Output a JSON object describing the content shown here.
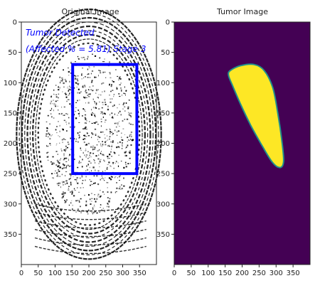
{
  "chart_data": [
    {
      "type": "image",
      "title": "Original Image",
      "xlim": [
        0,
        400
      ],
      "ylim": [
        400,
        0
      ],
      "xticks": [
        0,
        50,
        100,
        150,
        200,
        250,
        300,
        350
      ],
      "yticks": [
        0,
        50,
        100,
        150,
        200,
        250,
        300,
        350
      ],
      "annotation_lines": [
        "Tumor Detected",
        "(Affected % = 5.81) Stage 3"
      ],
      "annotation_color": "#0000ff",
      "bounding_box": {
        "x1": 152,
        "y1": 70,
        "x2": 342,
        "y2": 250
      },
      "box_color": "#0000ff"
    },
    {
      "type": "heatmap",
      "title": "Tumor Image",
      "xlim": [
        0,
        400
      ],
      "ylim": [
        400,
        0
      ],
      "xticks": [
        0,
        50,
        100,
        150,
        200,
        250,
        300,
        350
      ],
      "yticks": [
        0,
        50,
        100,
        150,
        200,
        250,
        300,
        350
      ],
      "background_color": "#440154",
      "region_color": "#fde725",
      "edge_color": "#21918c",
      "region_outline": [
        [
          165,
          80
        ],
        [
          195,
          72
        ],
        [
          235,
          70
        ],
        [
          265,
          80
        ],
        [
          290,
          108
        ],
        [
          305,
          150
        ],
        [
          318,
          200
        ],
        [
          322,
          230
        ],
        [
          312,
          240
        ],
        [
          290,
          232
        ],
        [
          260,
          205
        ],
        [
          225,
          170
        ],
        [
          195,
          135
        ],
        [
          172,
          105
        ],
        [
          160,
          88
        ]
      ]
    }
  ]
}
